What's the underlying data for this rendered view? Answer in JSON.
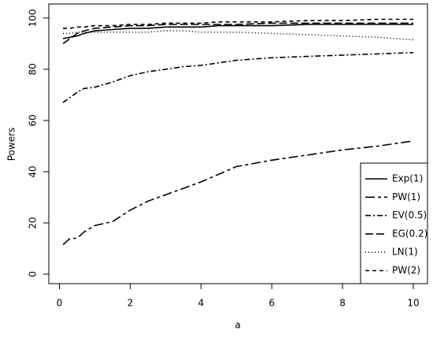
{
  "chart_data": {
    "type": "line",
    "xlabel": "a",
    "ylabel": "Powers",
    "x": [
      0.1,
      0.3,
      0.5,
      0.7,
      1,
      1.5,
      2,
      2.5,
      3,
      3.5,
      4,
      4.5,
      5,
      6,
      7,
      8,
      9,
      10
    ],
    "series": [
      {
        "name": "Exp(1)",
        "color": "#000000",
        "dash": "none",
        "values": [
          92,
          92.5,
          93,
          94,
          95,
          95.5,
          96,
          96,
          96.5,
          96.5,
          96.5,
          97,
          97,
          97,
          97.5,
          97.5,
          97.5,
          97.5
        ]
      },
      {
        "name": "PW(1)",
        "color": "#000000",
        "dash": "12,4,4,4",
        "values": [
          11.5,
          14,
          14,
          16.5,
          19,
          20.5,
          25,
          28.5,
          31,
          33.5,
          36,
          39,
          42,
          44.5,
          46.5,
          48.5,
          50,
          52
        ]
      },
      {
        "name": "EV(0.5)",
        "color": "#000000",
        "dash": "7,3,2,3",
        "values": [
          67,
          69,
          71,
          72.5,
          73,
          75,
          77.5,
          79,
          80,
          81,
          81.5,
          82.5,
          83.5,
          84.5,
          85,
          85.5,
          86,
          86.5
        ]
      },
      {
        "name": "EG(0.2)",
        "color": "#000000",
        "dash": "10,4",
        "values": [
          90,
          92,
          94,
          95,
          96,
          96.5,
          97,
          97,
          97.5,
          97.5,
          97.5,
          97.5,
          97.5,
          98,
          98,
          98,
          98,
          98
        ]
      },
      {
        "name": "LN(1)",
        "color": "#000000",
        "dash": "1,3",
        "values": [
          94,
          94,
          94.5,
          94.5,
          94.5,
          94.5,
          94.5,
          94.5,
          95,
          95,
          94.5,
          94.5,
          94.5,
          94,
          93.5,
          93,
          92.5,
          91.5
        ]
      },
      {
        "name": "PW(2)",
        "color": "#000000",
        "dash": "5,4",
        "values": [
          96,
          96,
          96.5,
          96.5,
          97,
          97,
          97.5,
          97.5,
          98,
          98,
          98,
          98.5,
          98.5,
          98.5,
          99,
          99,
          99.5,
          99.5
        ]
      }
    ],
    "xlim": [
      -0.3,
      10.4
    ],
    "ylim": [
      -3.7,
      105.5
    ],
    "xticks": [
      0,
      2,
      4,
      6,
      8,
      10
    ],
    "yticks": [
      0,
      20,
      40,
      60,
      80,
      100
    ],
    "legend": "bottom-right"
  }
}
